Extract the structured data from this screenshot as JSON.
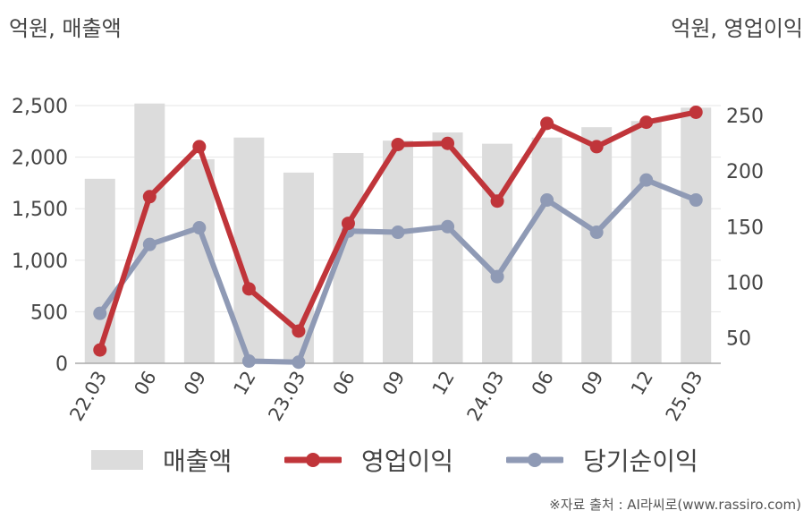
{
  "units": {
    "left": "억원, 매출액",
    "right": "억원, 영업이익"
  },
  "source": "※자료 출처 : AI라씨로(www.rassiro.com)",
  "colors": {
    "bar": "#dcdcdc",
    "op": "#c0353a",
    "net": "#8f9ab5",
    "axis": "#aaaaaa",
    "grid": "#e6e6e6",
    "text": "#444444"
  },
  "chart_data": {
    "type": "bar+line",
    "categories": [
      "22.03",
      "06",
      "09",
      "12",
      "23.03",
      "06",
      "09",
      "12",
      "24.03",
      "06",
      "09",
      "12",
      "25.03"
    ],
    "y_left": {
      "ticks": [
        0,
        500,
        1000,
        1500,
        2000,
        2500
      ],
      "tick_labels": [
        "0",
        "500",
        "1,000",
        "1,500",
        "2,000",
        "2,500"
      ],
      "range": [
        0,
        2500
      ]
    },
    "y_right": {
      "ticks": [
        50,
        100,
        150,
        200,
        250
      ],
      "tick_labels": [
        "50",
        "100",
        "150",
        "200",
        "250"
      ],
      "range": [
        27,
        259
      ]
    },
    "grid": true,
    "legend_position": "bottom",
    "series": [
      {
        "name": "매출액",
        "type": "bar",
        "axis": "left",
        "values": [
          1790,
          2520,
          1980,
          2190,
          1850,
          2040,
          2160,
          2240,
          2130,
          2190,
          2290,
          2350,
          2480
        ]
      },
      {
        "name": "영업이익",
        "type": "line",
        "axis": "right",
        "values": [
          39,
          177,
          222,
          94,
          56,
          153,
          224,
          225,
          173,
          243,
          222,
          244,
          253
        ]
      },
      {
        "name": "당기순이익",
        "type": "line",
        "axis": "right",
        "values": [
          72,
          134,
          149,
          29,
          28,
          146,
          145,
          150,
          105,
          174,
          145,
          192,
          174
        ]
      }
    ]
  }
}
